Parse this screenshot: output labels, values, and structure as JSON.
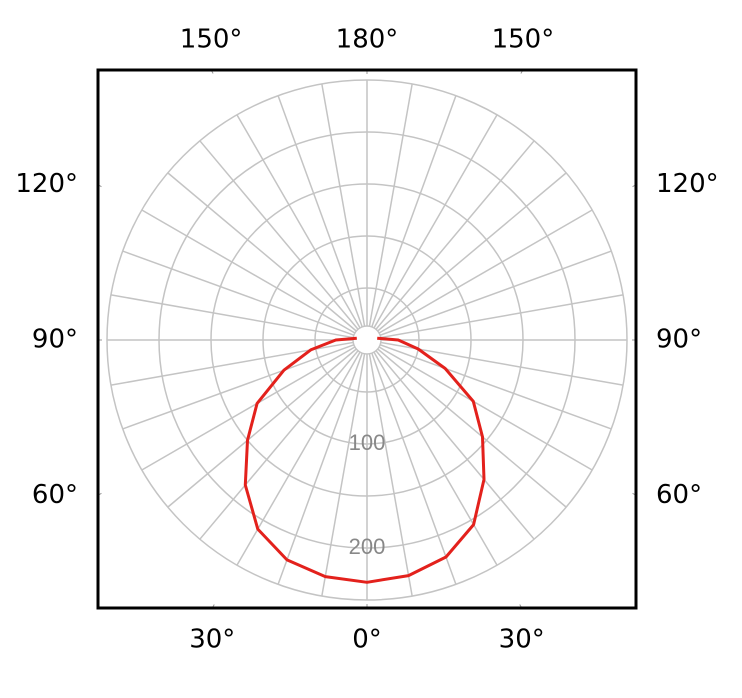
{
  "chart_data": {
    "type": "polar",
    "angles": [
      -100,
      -90,
      -80,
      -70,
      -60,
      -50,
      -40,
      -30,
      -20,
      -10,
      0,
      10,
      20,
      30,
      40,
      50,
      60,
      70,
      80,
      90,
      100
    ],
    "values": [
      10,
      30,
      55,
      85,
      122,
      150,
      182,
      210,
      225,
      231,
      233,
      230,
      222,
      205,
      175,
      145,
      118,
      80,
      50,
      30,
      10
    ],
    "color": "#e3211c",
    "rlim": [
      0,
      250
    ],
    "rticks": [
      100,
      200
    ],
    "rminor": [
      50,
      150,
      250
    ],
    "angle_ticks": [
      {
        "value": 0,
        "label": "0°"
      },
      {
        "value": 30,
        "label": "30°"
      },
      {
        "value": 60,
        "label": "60°"
      },
      {
        "value": 90,
        "label": "90°"
      },
      {
        "value": 120,
        "label": "120°"
      },
      {
        "value": 150,
        "label": "150°"
      },
      {
        "value": 180,
        "label": "180°"
      }
    ],
    "grid": true
  }
}
